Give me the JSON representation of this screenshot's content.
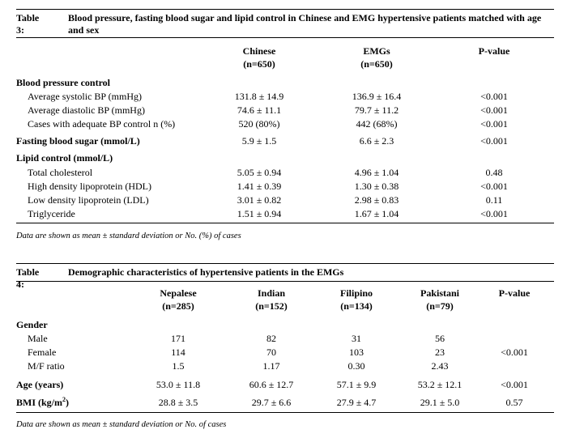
{
  "table3": {
    "label": "Table 3:",
    "title": "Blood pressure, fasting blood sugar and lipid control in Chinese and EMG hypertensive patients matched with age and sex",
    "columns": [
      {
        "name": "Chinese",
        "n": "(n=650)"
      },
      {
        "name": "EMGs",
        "n": "(n=650)"
      },
      {
        "name": "P-value",
        "n": ""
      }
    ],
    "sections": [
      {
        "heading": "Blood pressure control",
        "value": [
          "",
          "",
          ""
        ],
        "rows": [
          {
            "label": "Average systolic BP (mmHg)",
            "values": [
              "131.8 ± 14.9",
              "136.9 ± 16.4",
              "<0.001"
            ]
          },
          {
            "label": "Average diastolic BP (mmHg)",
            "values": [
              "74.6 ± 11.1",
              "79.7 ± 11.2",
              "<0.001"
            ]
          },
          {
            "label": "Cases with adequate BP control n (%)",
            "values": [
              "520 (80%)",
              "442 (68%)",
              "<0.001"
            ]
          }
        ]
      },
      {
        "heading": "Fasting blood sugar  (mmol/L)",
        "value": [
          "5.9 ± 1.5",
          "6.6 ± 2.3",
          "<0.001"
        ],
        "rows": []
      },
      {
        "heading": "Lipid control  (mmol/L)",
        "value": [
          "",
          "",
          ""
        ],
        "rows": [
          {
            "label": "Total cholesterol",
            "values": [
              "5.05 ± 0.94",
              "4.96 ± 1.04",
              "0.48"
            ]
          },
          {
            "label": "High density lipoprotein (HDL)",
            "values": [
              "1.41 ± 0.39",
              "1.30 ± 0.38",
              "<0.001"
            ]
          },
          {
            "label": "Low density lipoprotein (LDL)",
            "values": [
              "3.01 ± 0.82",
              "2.98 ± 0.83",
              "0.11"
            ]
          },
          {
            "label": "Triglyceride",
            "values": [
              "1.51 ± 0.94",
              "1.67 ± 1.04",
              "<0.001"
            ]
          }
        ]
      }
    ],
    "footnote": "Data are shown as mean ± standard deviation or No. (%) of cases"
  },
  "table4": {
    "label": "Table 4:",
    "title": "Demographic characteristics of hypertensive patients in the EMGs",
    "columns": [
      {
        "name": "Nepalese",
        "n": "(n=285)"
      },
      {
        "name": "Indian",
        "n": "(n=152)"
      },
      {
        "name": "Filipino",
        "n": "(n=134)"
      },
      {
        "name": "Pakistani",
        "n": "(n=79)"
      },
      {
        "name": "P-value",
        "n": ""
      }
    ],
    "gender": {
      "heading": "Gender",
      "rows": [
        {
          "label": "Male",
          "values": [
            "171",
            "82",
            "31",
            "56",
            ""
          ]
        },
        {
          "label": "Female",
          "values": [
            "114",
            "70",
            "103",
            "23",
            "<0.001"
          ]
        },
        {
          "label": "M/F ratio",
          "values": [
            "1.5",
            "1.17",
            "0.30",
            "2.43",
            ""
          ]
        }
      ]
    },
    "age": {
      "label": "Age (years)",
      "values": [
        "53.0 ± 11.8",
        "60.6 ± 12.7",
        "57.1 ± 9.9",
        "53.2 ± 12.1",
        "<0.001"
      ]
    },
    "bmi": {
      "label": "BMI (kg/m",
      "sup": "2",
      "label_end": ")",
      "values": [
        "28.8 ± 3.5",
        "29.7 ± 6.6",
        "27.9 ± 4.7",
        "29.1 ± 5.0",
        "0.57"
      ]
    },
    "footnote": "Data are shown as mean ± standard deviation or No. of cases"
  }
}
